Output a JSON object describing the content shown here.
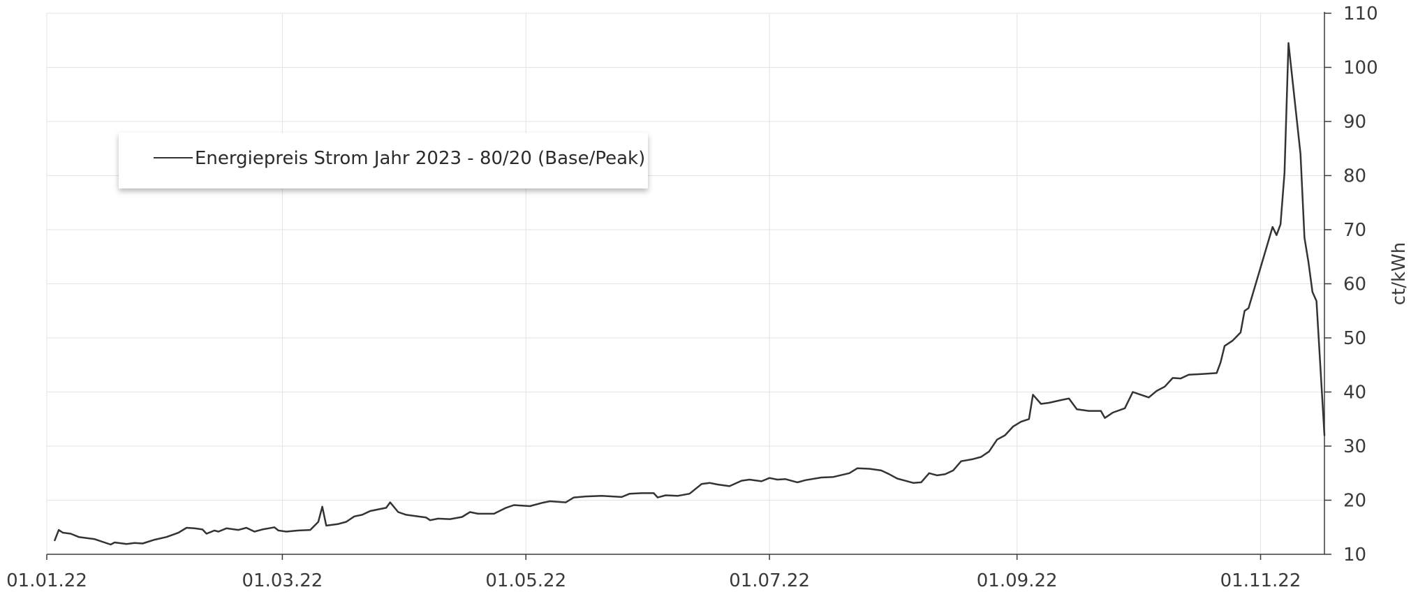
{
  "chart_data": {
    "type": "line",
    "title": "",
    "xlabel": "",
    "ylabel": "ct/kWh",
    "ylim": [
      10,
      110
    ],
    "xlim": [
      "2022-01-01",
      "2022-11-17"
    ],
    "y_axis_side": "right",
    "grid": true,
    "legend": "top-left",
    "x_ticks": [
      {
        "date": "2022-01-01",
        "label": "01.01.22"
      },
      {
        "date": "2022-03-01",
        "label": "01.03.22"
      },
      {
        "date": "2022-05-01",
        "label": "01.05.22"
      },
      {
        "date": "2022-07-01",
        "label": "01.07.22"
      },
      {
        "date": "2022-09-01",
        "label": "01.09.22"
      },
      {
        "date": "2022-11-01",
        "label": "01.11.22"
      }
    ],
    "y_ticks": [
      10,
      20,
      30,
      40,
      50,
      60,
      70,
      80,
      90,
      100,
      110
    ],
    "colors": {
      "line": "#333333",
      "grid": "#e3e3e3",
      "axis": "#3a3a3a"
    },
    "series": [
      {
        "name": "Energiepreis Strom Jahr 2023 - 80/20 (Base/Peak)",
        "points": [
          [
            "2022-01-03",
            12.6
          ],
          [
            "2022-01-04",
            14.5
          ],
          [
            "2022-01-05",
            14.0
          ],
          [
            "2022-01-07",
            13.8
          ],
          [
            "2022-01-09",
            13.2
          ],
          [
            "2022-01-13",
            12.8
          ],
          [
            "2022-01-17",
            11.8
          ],
          [
            "2022-01-18",
            12.2
          ],
          [
            "2022-01-21",
            11.9
          ],
          [
            "2022-01-23",
            12.1
          ],
          [
            "2022-01-25",
            12.0
          ],
          [
            "2022-01-28",
            12.7
          ],
          [
            "2022-01-31",
            13.2
          ],
          [
            "2022-02-03",
            14.0
          ],
          [
            "2022-02-05",
            14.9
          ],
          [
            "2022-02-07",
            14.8
          ],
          [
            "2022-02-09",
            14.6
          ],
          [
            "2022-02-10",
            13.8
          ],
          [
            "2022-02-12",
            14.4
          ],
          [
            "2022-02-13",
            14.2
          ],
          [
            "2022-02-15",
            14.8
          ],
          [
            "2022-02-18",
            14.5
          ],
          [
            "2022-02-20",
            14.9
          ],
          [
            "2022-02-22",
            14.2
          ],
          [
            "2022-02-24",
            14.6
          ],
          [
            "2022-02-27",
            15.0
          ],
          [
            "2022-02-28",
            14.4
          ],
          [
            "2022-03-02",
            14.2
          ],
          [
            "2022-03-05",
            14.4
          ],
          [
            "2022-03-08",
            14.5
          ],
          [
            "2022-03-10",
            16.0
          ],
          [
            "2022-03-11",
            18.8
          ],
          [
            "2022-03-12",
            15.3
          ],
          [
            "2022-03-15",
            15.6
          ],
          [
            "2022-03-17",
            16.0
          ],
          [
            "2022-03-19",
            17.0
          ],
          [
            "2022-03-21",
            17.3
          ],
          [
            "2022-03-23",
            18.0
          ],
          [
            "2022-03-27",
            18.6
          ],
          [
            "2022-03-28",
            19.6
          ],
          [
            "2022-03-30",
            17.8
          ],
          [
            "2022-04-01",
            17.3
          ],
          [
            "2022-04-04",
            17.0
          ],
          [
            "2022-04-06",
            16.8
          ],
          [
            "2022-04-07",
            16.3
          ],
          [
            "2022-04-09",
            16.6
          ],
          [
            "2022-04-12",
            16.5
          ],
          [
            "2022-04-15",
            16.9
          ],
          [
            "2022-04-17",
            17.8
          ],
          [
            "2022-04-19",
            17.5
          ],
          [
            "2022-04-23",
            17.5
          ],
          [
            "2022-04-26",
            18.6
          ],
          [
            "2022-04-28",
            19.1
          ],
          [
            "2022-05-02",
            18.9
          ],
          [
            "2022-05-05",
            19.5
          ],
          [
            "2022-05-07",
            19.8
          ],
          [
            "2022-05-11",
            19.6
          ],
          [
            "2022-05-13",
            20.5
          ],
          [
            "2022-05-16",
            20.7
          ],
          [
            "2022-05-20",
            20.8
          ],
          [
            "2022-05-25",
            20.6
          ],
          [
            "2022-05-27",
            21.2
          ],
          [
            "2022-05-30",
            21.3
          ],
          [
            "2022-06-02",
            21.3
          ],
          [
            "2022-06-03",
            20.5
          ],
          [
            "2022-06-05",
            20.9
          ],
          [
            "2022-06-08",
            20.8
          ],
          [
            "2022-06-11",
            21.2
          ],
          [
            "2022-06-14",
            23.0
          ],
          [
            "2022-06-16",
            23.2
          ],
          [
            "2022-06-18",
            22.9
          ],
          [
            "2022-06-21",
            22.6
          ],
          [
            "2022-06-24",
            23.6
          ],
          [
            "2022-06-26",
            23.8
          ],
          [
            "2022-06-29",
            23.5
          ],
          [
            "2022-07-01",
            24.1
          ],
          [
            "2022-07-03",
            23.8
          ],
          [
            "2022-07-05",
            23.9
          ],
          [
            "2022-07-08",
            23.3
          ],
          [
            "2022-07-10",
            23.7
          ],
          [
            "2022-07-14",
            24.2
          ],
          [
            "2022-07-17",
            24.3
          ],
          [
            "2022-07-21",
            25.0
          ],
          [
            "2022-07-23",
            25.9
          ],
          [
            "2022-07-26",
            25.8
          ],
          [
            "2022-07-29",
            25.5
          ],
          [
            "2022-07-31",
            24.8
          ],
          [
            "2022-08-02",
            24.0
          ],
          [
            "2022-08-04",
            23.6
          ],
          [
            "2022-08-06",
            23.2
          ],
          [
            "2022-08-08",
            23.3
          ],
          [
            "2022-08-10",
            25.0
          ],
          [
            "2022-08-12",
            24.6
          ],
          [
            "2022-08-14",
            24.8
          ],
          [
            "2022-08-16",
            25.5
          ],
          [
            "2022-08-18",
            27.2
          ],
          [
            "2022-08-21",
            27.6
          ],
          [
            "2022-08-23",
            28.0
          ],
          [
            "2022-08-25",
            29.0
          ],
          [
            "2022-08-27",
            31.2
          ],
          [
            "2022-08-29",
            32.0
          ],
          [
            "2022-08-31",
            33.6
          ],
          [
            "2022-09-02",
            34.5
          ],
          [
            "2022-09-04",
            35.0
          ],
          [
            "2022-09-05",
            39.5
          ],
          [
            "2022-09-07",
            37.8
          ],
          [
            "2022-09-09",
            38.0
          ],
          [
            "2022-09-12",
            38.5
          ],
          [
            "2022-09-14",
            38.8
          ],
          [
            "2022-09-16",
            36.8
          ],
          [
            "2022-09-19",
            36.5
          ],
          [
            "2022-09-22",
            36.5
          ],
          [
            "2022-09-23",
            35.2
          ],
          [
            "2022-09-25",
            36.2
          ],
          [
            "2022-09-28",
            37.0
          ],
          [
            "2022-09-30",
            40.0
          ],
          [
            "2022-10-02",
            39.5
          ],
          [
            "2022-10-04",
            39.0
          ],
          [
            "2022-10-06",
            40.2
          ],
          [
            "2022-10-08",
            41.0
          ],
          [
            "2022-10-10",
            42.6
          ],
          [
            "2022-10-12",
            42.5
          ],
          [
            "2022-10-14",
            43.2
          ],
          [
            "2022-10-17",
            43.3
          ],
          [
            "2022-10-21",
            43.5
          ],
          [
            "2022-10-22",
            45.5
          ],
          [
            "2022-10-23",
            48.5
          ],
          [
            "2022-10-25",
            49.5
          ],
          [
            "2022-10-27",
            51.0
          ],
          [
            "2022-10-28",
            55.0
          ],
          [
            "2022-10-29",
            55.5
          ],
          [
            "2022-11-04",
            70.5
          ],
          [
            "2022-11-05",
            69.0
          ],
          [
            "2022-11-06",
            71.0
          ],
          [
            "2022-11-07",
            80.5
          ],
          [
            "2022-11-08",
            104.5
          ],
          [
            "2022-11-11",
            84.0
          ],
          [
            "2022-11-12",
            68.5
          ],
          [
            "2022-11-13",
            64.0
          ],
          [
            "2022-11-14",
            58.5
          ],
          [
            "2022-11-15",
            56.8
          ],
          [
            "2022-11-17",
            32.0
          ]
        ]
      }
    ]
  }
}
